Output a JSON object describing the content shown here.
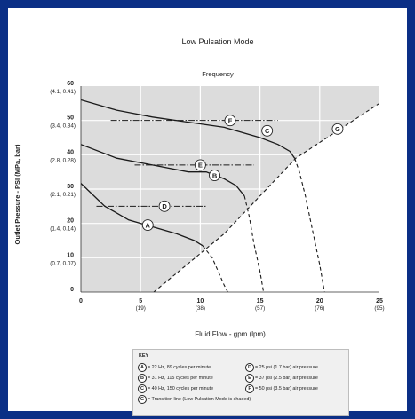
{
  "chart_data": {
    "type": "line",
    "title": "Low Pulsation Mode",
    "subtitle": "Frequency",
    "xlabel": "Fluid Flow - gpm (lpm)",
    "ylabel": "Outlet Pressure - PSI (MPa, bar)",
    "xlim": [
      0,
      25
    ],
    "ylim": [
      0,
      60
    ],
    "x_ticks": [
      {
        "value": 0,
        "label": "0",
        "sub": ""
      },
      {
        "value": 5,
        "label": "5",
        "sub": "(19)"
      },
      {
        "value": 10,
        "label": "10",
        "sub": "(38)"
      },
      {
        "value": 15,
        "label": "15",
        "sub": "(57)"
      },
      {
        "value": 20,
        "label": "20",
        "sub": "(76)"
      },
      {
        "value": 25,
        "label": "25",
        "sub": "(95)"
      }
    ],
    "y_ticks": [
      {
        "value": 0,
        "label": "0",
        "sub": ""
      },
      {
        "value": 10,
        "label": "10",
        "sub": "(0.7, 0.07)"
      },
      {
        "value": 20,
        "label": "20",
        "sub": "(1.4, 0.14)"
      },
      {
        "value": 30,
        "label": "30",
        "sub": "(2.1, 0.21)"
      },
      {
        "value": 40,
        "label": "40",
        "sub": "(2.8, 0.28)"
      },
      {
        "value": 50,
        "label": "50",
        "sub": "(3.4, 0.34)"
      },
      {
        "value": 60,
        "label": "60",
        "sub": "(4.1, 0.41)"
      }
    ],
    "shaded_region": "above transition line G",
    "series": [
      {
        "id": "A",
        "solid": [
          [
            -0.1,
            32
          ],
          [
            2,
            25
          ],
          [
            4,
            21
          ],
          [
            6,
            19
          ],
          [
            8,
            17
          ],
          [
            9.5,
            15
          ],
          [
            10.2,
            13.5
          ]
        ],
        "dashed": [
          [
            10.2,
            13.5
          ],
          [
            11,
            10
          ],
          [
            11.5,
            6
          ],
          [
            12,
            2
          ],
          [
            12.3,
            0
          ]
        ]
      },
      {
        "id": "B",
        "solid": [
          [
            0,
            43
          ],
          [
            3,
            39
          ],
          [
            6,
            37
          ],
          [
            9,
            35
          ],
          [
            10.5,
            35
          ],
          [
            12,
            33
          ],
          [
            13,
            31
          ],
          [
            13.7,
            28
          ]
        ],
        "dashed": [
          [
            13.7,
            28
          ],
          [
            14.1,
            22
          ],
          [
            14.5,
            14
          ],
          [
            15,
            6
          ],
          [
            15.3,
            0
          ]
        ]
      },
      {
        "id": "C",
        "solid": [
          [
            0,
            56
          ],
          [
            3,
            53
          ],
          [
            6,
            51
          ],
          [
            9,
            49.5
          ],
          [
            12,
            48
          ],
          [
            15,
            45
          ],
          [
            16.5,
            43
          ],
          [
            17.5,
            41
          ],
          [
            17.9,
            39
          ]
        ],
        "dashed": [
          [
            17.9,
            39
          ],
          [
            18.3,
            35
          ],
          [
            18.8,
            28
          ],
          [
            19.4,
            18
          ],
          [
            20,
            8
          ],
          [
            20.4,
            0
          ]
        ]
      },
      {
        "id": "G",
        "solid": [],
        "dashed": [
          [
            6.1,
            0
          ],
          [
            12,
            17
          ],
          [
            18,
            39
          ],
          [
            25,
            55
          ]
        ]
      }
    ],
    "reference_lines": [
      {
        "id": "D",
        "y": 25,
        "x": [
          1.3,
          10.5
        ]
      },
      {
        "id": "E",
        "y": 37,
        "x": [
          4.5,
          14.5
        ]
      },
      {
        "id": "F",
        "y": 50,
        "x": [
          2.5,
          16.5
        ]
      }
    ],
    "markers": [
      {
        "id": "A",
        "x": 5.6,
        "y": 19.5
      },
      {
        "id": "B",
        "x": 11.2,
        "y": 34
      },
      {
        "id": "C",
        "x": 15.6,
        "y": 47
      },
      {
        "id": "D",
        "x": 7,
        "y": 25
      },
      {
        "id": "E",
        "x": 10,
        "y": 37
      },
      {
        "id": "F",
        "x": 12.5,
        "y": 50
      },
      {
        "id": "G",
        "x": 21.5,
        "y": 47.5
      }
    ],
    "key": {
      "title": "KEY",
      "items": [
        {
          "id": "A",
          "text": "= 22 Hz, 89 cycles per minute"
        },
        {
          "id": "B",
          "text": "= 31 Hz, 115 cycles per minute"
        },
        {
          "id": "C",
          "text": "= 40 Hz, 150 cycles per minute"
        },
        {
          "id": "D",
          "text": "= 25 psi (1.7 bar) air pressure"
        },
        {
          "id": "E",
          "text": "= 37 psi (2.5 bar) air pressure"
        },
        {
          "id": "F",
          "text": "= 50 psi (3.5 bar) air pressure"
        },
        {
          "id": "G",
          "text": "= Transition line (Low Pulsation Mode is shaded)"
        }
      ]
    },
    "colors": {
      "shade": "#dcdcdc",
      "line": "#1a1a1a",
      "frame": "#0b2f86",
      "grid": "#ffffff"
    }
  }
}
